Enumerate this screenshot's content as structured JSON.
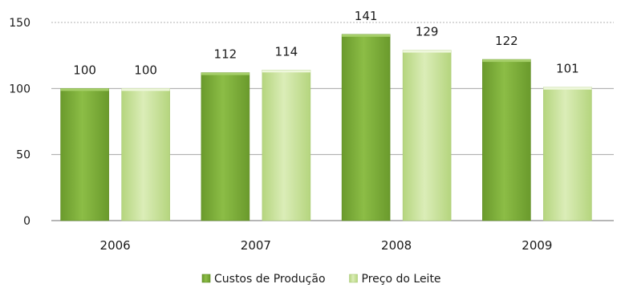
{
  "chart_data": {
    "type": "bar",
    "categories": [
      "2006",
      "2007",
      "2008",
      "2009"
    ],
    "series": [
      {
        "name": "Custos de Produção",
        "values": [
          100,
          112,
          141,
          122
        ],
        "color": "#7fb13a",
        "color_light": "#b2d77a"
      },
      {
        "name": "Preço do Leite",
        "values": [
          100,
          114,
          129,
          101
        ],
        "color": "#c2dd8f",
        "color_light": "#e6f2cc"
      }
    ],
    "ylim": [
      0,
      150
    ],
    "yticks": [
      0,
      50,
      100,
      150
    ],
    "grid": true,
    "legend": "bottom"
  }
}
